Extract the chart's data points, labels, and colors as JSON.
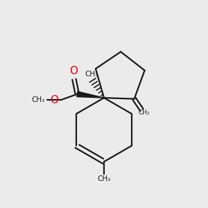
{
  "background_color": "#ebebeb",
  "line_color": "#1a1a1a",
  "o_color": "#e8000d",
  "bond_lw": 1.6,
  "figsize": [
    3.0,
    3.0
  ],
  "dpi": 100,
  "xlim": [
    0,
    10
  ],
  "ylim": [
    0,
    10
  ]
}
